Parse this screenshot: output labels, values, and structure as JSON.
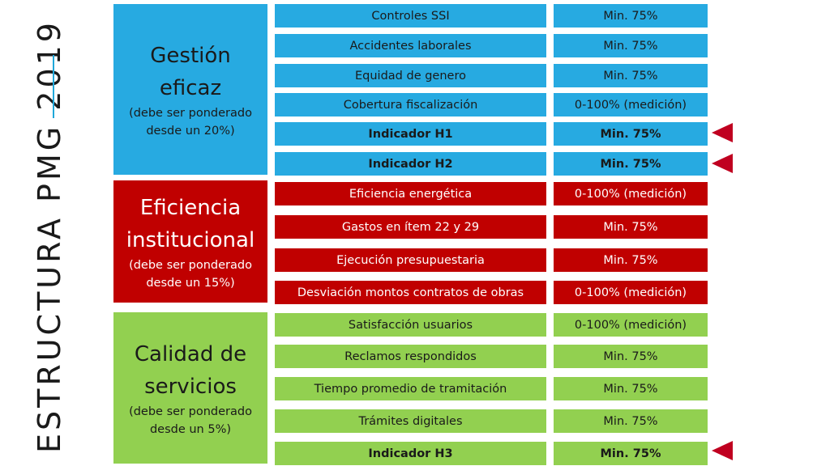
{
  "slide_title": "ESTRUCTURA PMG 2019",
  "colors": {
    "blue": "#27aae1",
    "red": "#c00000",
    "green": "#92d050",
    "marker": "#c00020",
    "accent": "#1fa7d9"
  },
  "groups": [
    {
      "name": "Gestión eficaz",
      "note": "(debe ser ponderado desde un 20%)"
    },
    {
      "name": "Eficiencia institucional",
      "note": "(debe ser ponderado desde un 15%)"
    },
    {
      "name": "Calidad de servicios",
      "note": "(debe ser ponderado desde un 5%)"
    }
  ],
  "rows": [
    {
      "name": "Controles SSI",
      "value": "Min. 75%"
    },
    {
      "name": "Accidentes laborales",
      "value": "Min. 75%"
    },
    {
      "name": "Equidad de genero",
      "value": "Min. 75%"
    },
    {
      "name": "Cobertura fiscalización",
      "value": "0-100% (medición)"
    },
    {
      "name": "Indicador H1",
      "value": "Min. 75%"
    },
    {
      "name": "Indicador H2",
      "value": "Min. 75%"
    },
    {
      "name": "Eficiencia energética",
      "value": "0-100% (medición)"
    },
    {
      "name": "Gastos en ítem 22 y 29",
      "value": "Min. 75%"
    },
    {
      "name": "Ejecución presupuestaria",
      "value": "Min. 75%"
    },
    {
      "name": "Desviación montos contratos de obras",
      "value": "0-100% (medición)"
    },
    {
      "name": "Satisfacción usuarios",
      "value": "0-100% (medición)"
    },
    {
      "name": "Reclamos respondidos",
      "value": "Min. 75%"
    },
    {
      "name": "Tiempo promedio de tramitación",
      "value": "Min. 75%"
    },
    {
      "name": "Trámites digitales",
      "value": "Min. 75%"
    },
    {
      "name": "Indicador H3",
      "value": "Min. 75%"
    }
  ]
}
